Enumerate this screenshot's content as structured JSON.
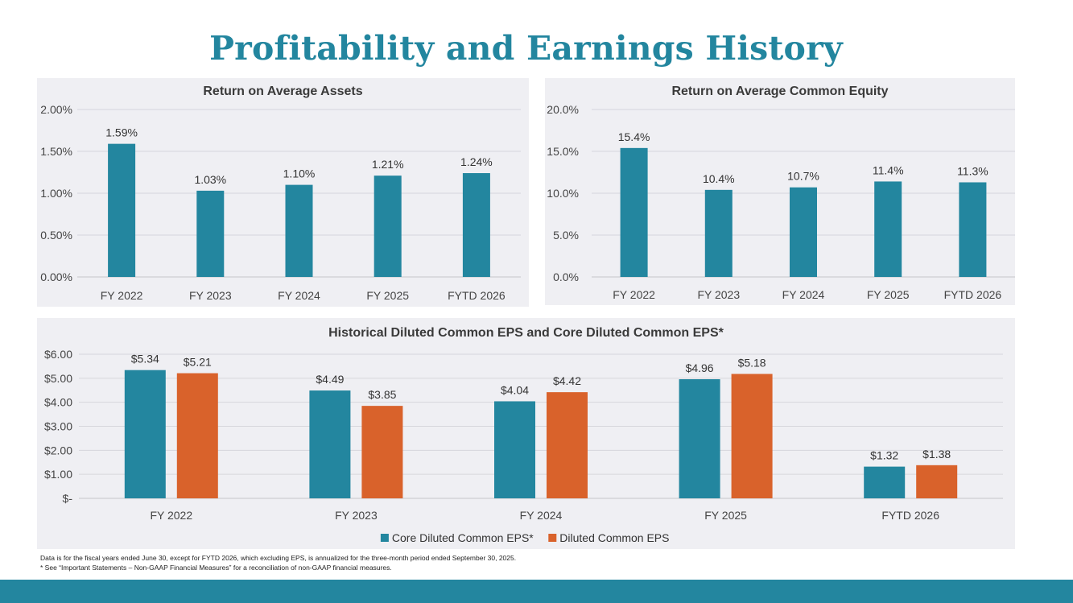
{
  "page": {
    "title": "Profitability and Earnings History",
    "footnotes": [
      "Data is for the fiscal years ended June 30, except for FYTD 2026, which excluding EPS, is annualized for the three-month period ended September 30, 2025.",
      "* See “Important Statements – Non-GAAP Financial Measures” for a reconciliation of non-GAAP financial measures."
    ],
    "colors": {
      "accent": "#23869f",
      "orange": "#d9622b",
      "panel": "#efeff3"
    }
  },
  "chart_data": [
    {
      "id": "roaa",
      "type": "bar",
      "title": "Return on Average Assets",
      "categories": [
        "FY 2022",
        "FY 2023",
        "FY 2024",
        "FY 2025",
        "FYTD 2026"
      ],
      "values": [
        1.59,
        1.03,
        1.1,
        1.21,
        1.24
      ],
      "value_labels": [
        "1.59%",
        "1.03%",
        "1.10%",
        "1.21%",
        "1.24%"
      ],
      "yticks": [
        0,
        0.5,
        1.0,
        1.5,
        2.0
      ],
      "ytick_labels": [
        "0.00%",
        "0.50%",
        "1.00%",
        "1.50%",
        "2.00%"
      ],
      "ylim": [
        0,
        2.0
      ],
      "color": "#23869f"
    },
    {
      "id": "roace",
      "type": "bar",
      "title": "Return on Average Common Equity",
      "categories": [
        "FY 2022",
        "FY 2023",
        "FY 2024",
        "FY 2025",
        "FYTD 2026"
      ],
      "values": [
        15.4,
        10.4,
        10.7,
        11.4,
        11.3
      ],
      "value_labels": [
        "15.4%",
        "10.4%",
        "10.7%",
        "11.4%",
        "11.3%"
      ],
      "yticks": [
        0,
        5,
        10,
        15,
        20
      ],
      "ytick_labels": [
        "0.0%",
        "5.0%",
        "10.0%",
        "15.0%",
        "20.0%"
      ],
      "ylim": [
        0,
        20
      ],
      "color": "#23869f"
    },
    {
      "id": "eps",
      "type": "bar",
      "title": "Historical Diluted Common EPS and Core Diluted Common EPS*",
      "categories": [
        "FY 2022",
        "FY 2023",
        "FY 2024",
        "FY 2025",
        "FYTD 2026"
      ],
      "series": [
        {
          "name": "Core Diluted Common EPS*",
          "color": "#23869f",
          "values": [
            5.34,
            4.49,
            4.04,
            4.96,
            1.32
          ],
          "value_labels": [
            "$5.34",
            "$4.49",
            "$4.04",
            "$4.96",
            "$1.32"
          ]
        },
        {
          "name": "Diluted Common EPS",
          "color": "#d9622b",
          "values": [
            5.21,
            3.85,
            4.42,
            5.18,
            1.38
          ],
          "value_labels": [
            "$5.21",
            "$3.85",
            "$4.42",
            "$5.18",
            "$1.38"
          ]
        }
      ],
      "yticks": [
        0,
        1,
        2,
        3,
        4,
        5,
        6
      ],
      "ytick_labels": [
        "$-",
        "$1.00",
        "$2.00",
        "$3.00",
        "$4.00",
        "$5.00",
        "$6.00"
      ],
      "ylim": [
        0,
        6
      ],
      "legend": "bottom"
    }
  ]
}
